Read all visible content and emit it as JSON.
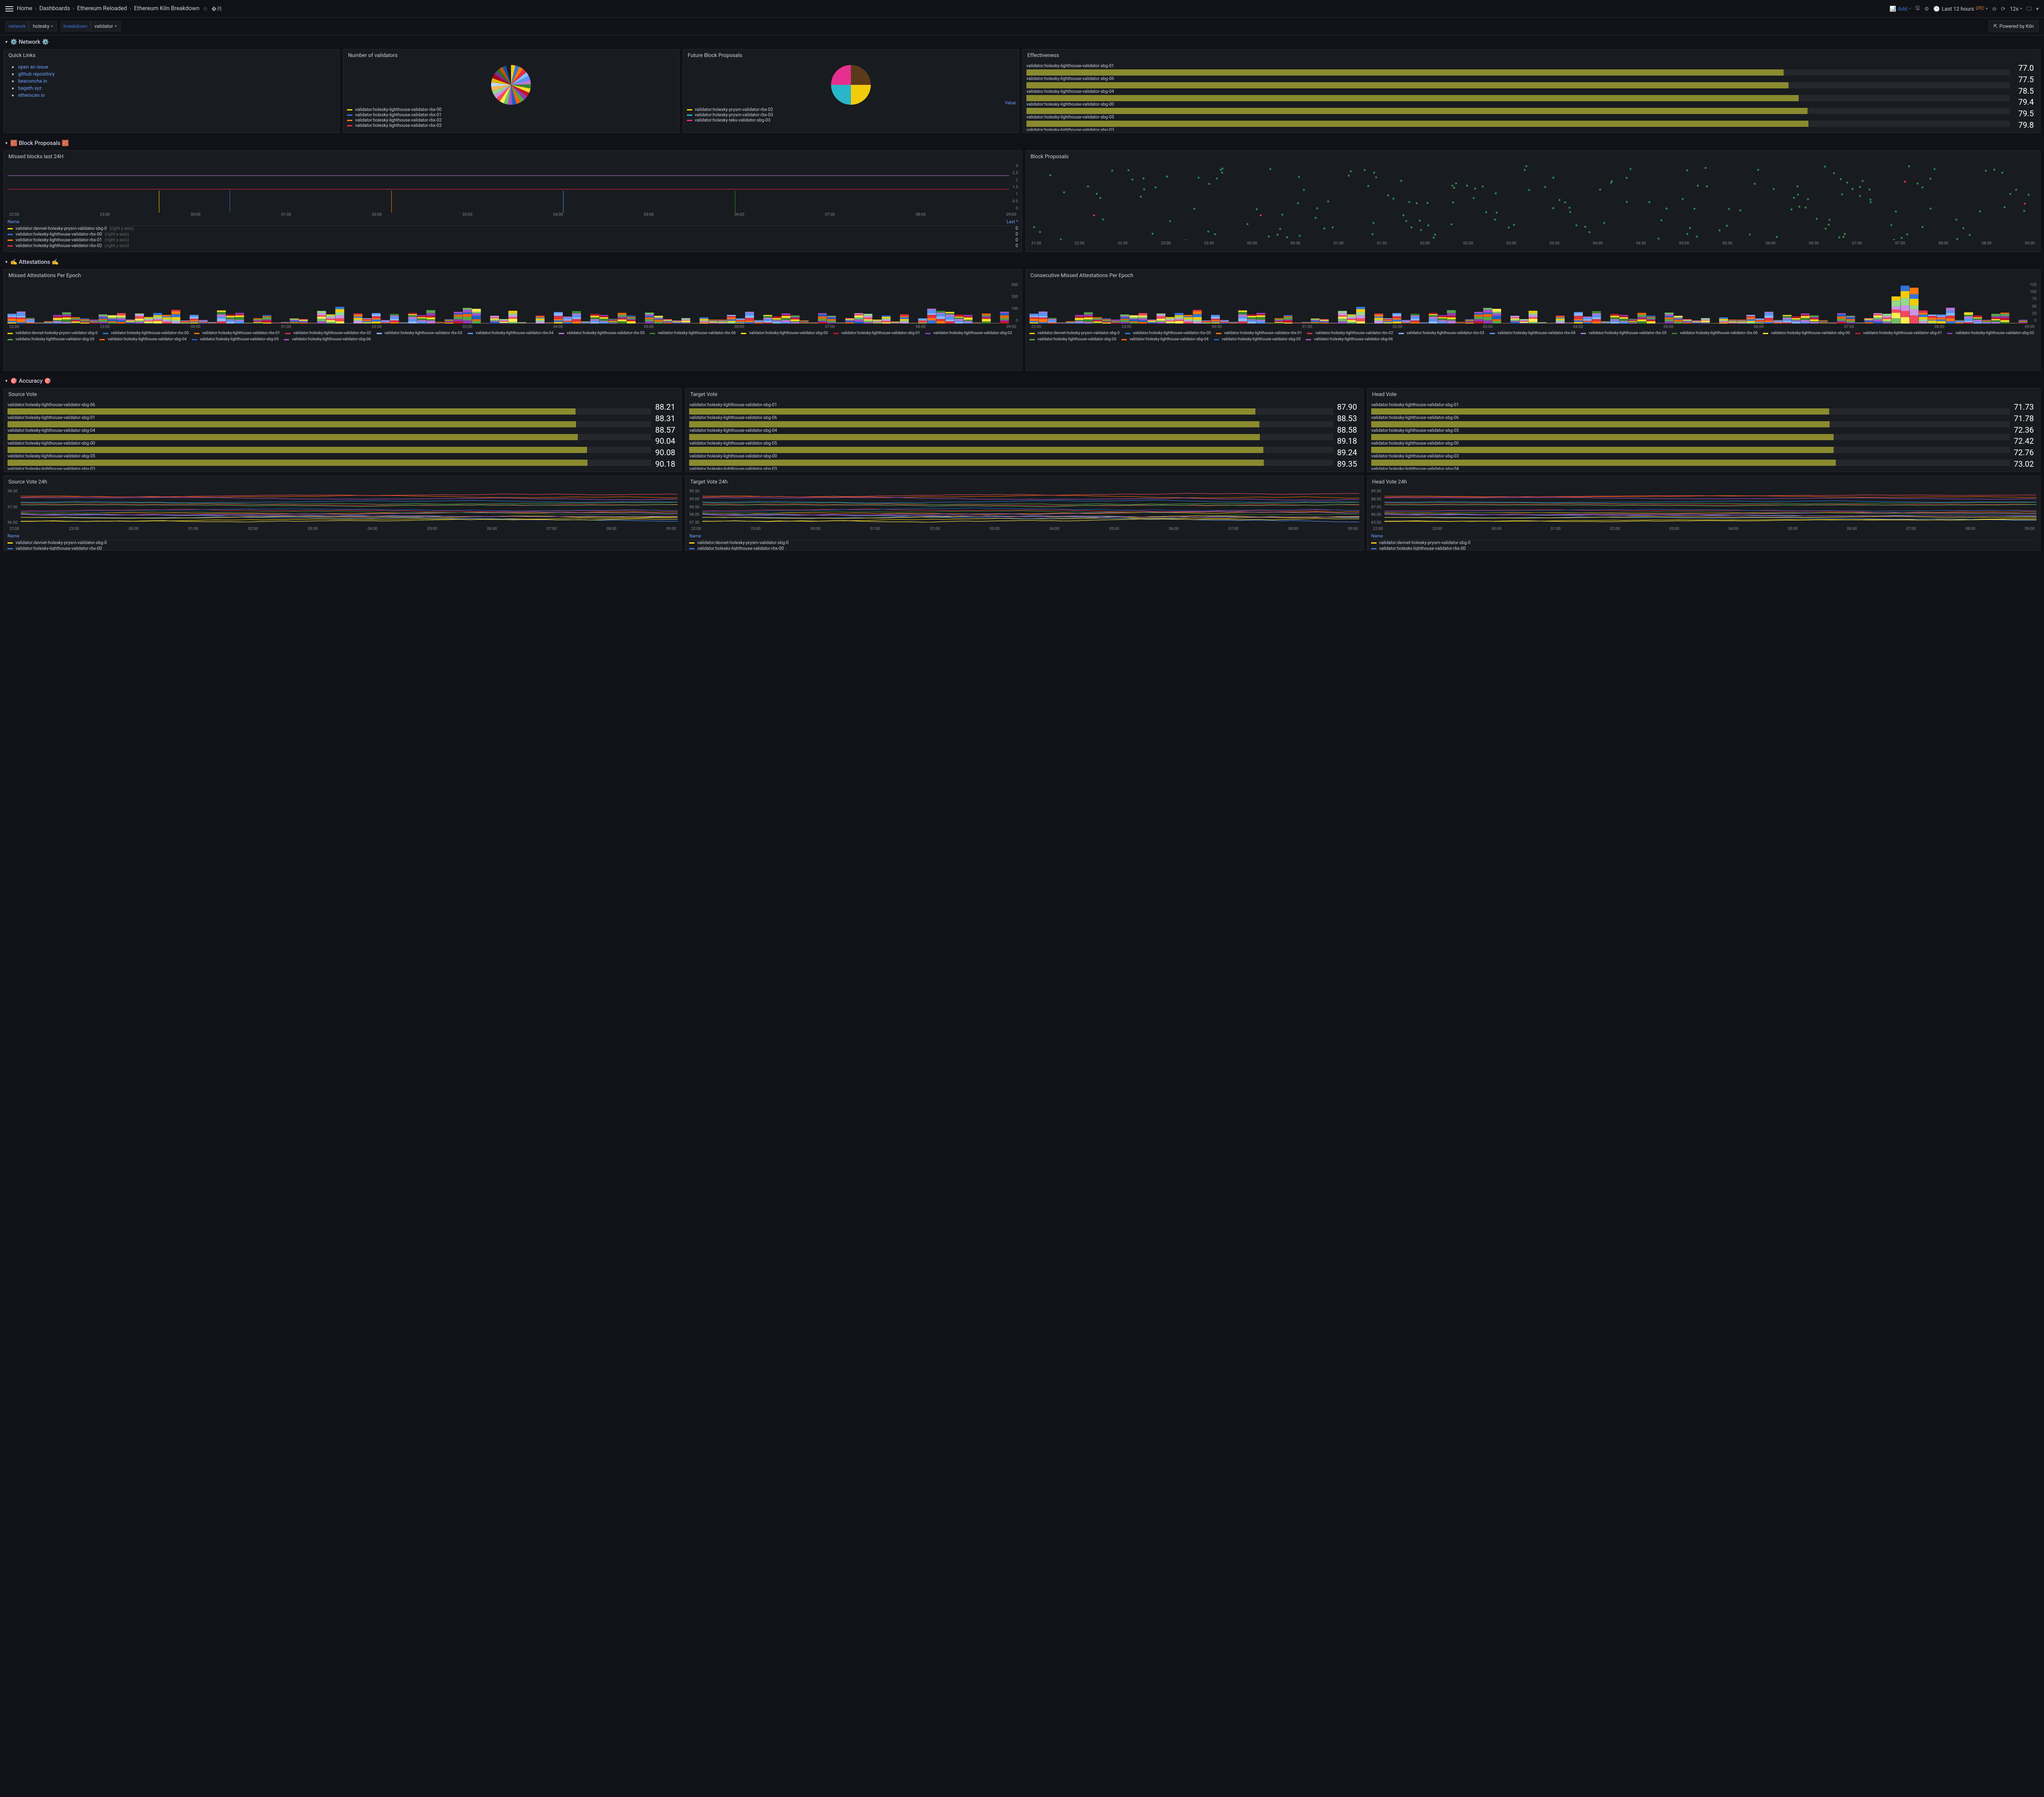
{
  "breadcrumb": {
    "home": "Home",
    "dashboards": "Dashboards",
    "folder": "Ethereum Reloaded",
    "page": "Ethereum Kiln Breakdown"
  },
  "toolbar": {
    "add": "Add",
    "timerange": "Last 12 hours",
    "tz": "UTC",
    "refresh": "12s",
    "powered": "Powered by Kiln"
  },
  "vars": {
    "network_label": "network",
    "network_value": "holesky",
    "breakdown_label": "breakdown",
    "breakdown_value": "validator"
  },
  "rows": {
    "network": "⚙️ Network ⚙️",
    "block_proposals": "🧱 Block Proposals 🧱",
    "attestations": "✍️ Attestations ✍️",
    "accuracy": "🎯 Accuracy 🎯"
  },
  "quick_links": {
    "title": "Quick Links",
    "items": [
      {
        "label": "open an issue"
      },
      {
        "label": "github repository"
      },
      {
        "label": "beaconcha.in"
      },
      {
        "label": "bageth.xyz"
      },
      {
        "label": "etherscan.io"
      }
    ]
  },
  "num_validators": {
    "title": "Number of validators",
    "slices": [
      {
        "color": "#f2cc0c",
        "pct": 3.5
      },
      {
        "color": "#3274d9",
        "pct": 3.5
      },
      {
        "color": "#ff780a",
        "pct": 3.5
      },
      {
        "color": "#e02f44",
        "pct": 3.5
      },
      {
        "color": "#8ab8ff",
        "pct": 3.5
      },
      {
        "color": "#5794f2",
        "pct": 3.5
      },
      {
        "color": "#b877d9",
        "pct": 3.5
      },
      {
        "color": "#37872d",
        "pct": 3.5
      },
      {
        "color": "#fade2a",
        "pct": 3.5
      },
      {
        "color": "#c4162a",
        "pct": 3.5
      },
      {
        "color": "#8f3bb8",
        "pct": 3.5
      },
      {
        "color": "#56a64b",
        "pct": 3.5
      },
      {
        "color": "#fa6400",
        "pct": 3.5
      },
      {
        "color": "#1f60c4",
        "pct": 3.5
      },
      {
        "color": "#a352cc",
        "pct": 3.5
      },
      {
        "color": "#73bf69",
        "pct": 3.5
      },
      {
        "color": "#ffee52",
        "pct": 3.5
      },
      {
        "color": "#f2495c",
        "pct": 3.5
      },
      {
        "color": "#ca95e5",
        "pct": 3.5
      },
      {
        "color": "#96d98d",
        "pct": 3.5
      },
      {
        "color": "#ffb357",
        "pct": 3.5
      },
      {
        "color": "#c0d8ff",
        "pct": 3.5
      },
      {
        "color": "#e0b400",
        "pct": 3.5
      },
      {
        "color": "#ad0317",
        "pct": 3.5
      },
      {
        "color": "#7c2d92",
        "pct": 3.0
      },
      {
        "color": "#2f7020",
        "pct": 3.0
      },
      {
        "color": "#cc5200",
        "pct": 3.0
      },
      {
        "color": "#1250a0",
        "pct": 3.0
      }
    ],
    "legend": [
      {
        "color": "#f2cc0c",
        "label": "validator:holesky-lighthouse-validator-rbx-00"
      },
      {
        "color": "#3274d9",
        "label": "validator:holesky-lighthouse-validator-rbx-01"
      },
      {
        "color": "#ff780a",
        "label": "validator:holesky-lighthouse-validator-rbx-02"
      },
      {
        "color": "#e02f44",
        "label": "validator:holesky-lighthouse-validator-rbx-03"
      }
    ]
  },
  "future_proposals": {
    "title": "Future Block Proposals",
    "value_label": "Value",
    "slices": [
      {
        "color": "#5b3a1a",
        "pct": 25
      },
      {
        "color": "#f2cc0c",
        "pct": 25
      },
      {
        "color": "#29b6c9",
        "pct": 25
      },
      {
        "color": "#e5308f",
        "pct": 25
      }
    ],
    "legend": [
      {
        "color": "#f2cc0c",
        "label": "validator:holesky-prysm-validator-rbx-02"
      },
      {
        "color": "#29b6c9",
        "label": "validator:holesky-prysm-validator-rbx-03"
      },
      {
        "color": "#e5308f",
        "label": "validator:holesky-teku-validator-sbg-03"
      }
    ]
  },
  "effectiveness": {
    "title": "Effectiveness",
    "items": [
      {
        "label": "validator:holesky-lighthouse-validator-sbg-01",
        "pct": 77.0,
        "value": "77.0"
      },
      {
        "label": "validator:holesky-lighthouse-validator-sbg-06",
        "pct": 77.5,
        "value": "77.5"
      },
      {
        "label": "validator:holesky-lighthouse-validator-sbg-04",
        "pct": 78.5,
        "value": "78.5"
      },
      {
        "label": "validator:holesky-lighthouse-validator-sbg-00",
        "pct": 79.4,
        "value": "79.4"
      },
      {
        "label": "validator:holesky-lighthouse-validator-sbg-05",
        "pct": 79.5,
        "value": "79.5"
      },
      {
        "label": "validator:holesky-lighthouse-validator-sbg-03",
        "pct": 79.8,
        "value": "79.8"
      }
    ],
    "bar_color": "#8a8a2f"
  },
  "missed_blocks": {
    "title": "Missed blocks last 24H",
    "x_ticks": [
      "22:00",
      "23:00",
      "00:00",
      "01:00",
      "02:00",
      "03:00",
      "04:00",
      "05:00",
      "06:00",
      "07:00",
      "08:00",
      "09:00"
    ],
    "y_ticks": [
      "3",
      "2.5",
      "2",
      "1.5",
      "1",
      "0.5",
      "0"
    ],
    "legend_header_name": "Name",
    "legend_header_last": "Last *",
    "lines": [
      {
        "color": "#b877d9",
        "y": 0.24
      },
      {
        "color": "#e02f44",
        "y": 0.52
      }
    ],
    "verticals": [
      {
        "color": "#f2cc0c",
        "x": 0.15
      },
      {
        "color": "#3274d9",
        "x": 0.22
      },
      {
        "color": "#ff780a",
        "x": 0.38
      },
      {
        "color": "#5794f2",
        "x": 0.55
      },
      {
        "color": "#37872d",
        "x": 0.72
      }
    ],
    "legend": [
      {
        "color": "#f2cc0c",
        "label": "validator:devnet-holesky-prysm-validator-sbg-0",
        "dim": "(right y-axis)",
        "value": "0"
      },
      {
        "color": "#3274d9",
        "label": "validator:holesky-lighthouse-validator-rbx-00",
        "dim": "(right y-axis)",
        "value": "0"
      },
      {
        "color": "#ff780a",
        "label": "validator:holesky-lighthouse-validator-rbx-01",
        "dim": "(right y-axis)",
        "value": "0"
      },
      {
        "color": "#e02f44",
        "label": "validator:holesky-lighthouse-validator-rbx-02",
        "dim": "(right y-axis)",
        "value": "0"
      }
    ]
  },
  "block_proposals_scatter": {
    "title": "Block Proposals",
    "x_ticks": [
      "21:30",
      "22:00",
      "22:30",
      "23:00",
      "23:30",
      "00:00",
      "00:30",
      "01:00",
      "01:30",
      "02:00",
      "02:30",
      "03:00",
      "03:30",
      "04:00",
      "04:30",
      "05:00",
      "05:30",
      "06:00",
      "06:30",
      "07:00",
      "07:30",
      "08:00",
      "08:30",
      "09:00"
    ],
    "green": "#2d8a52",
    "red": "#e02f44",
    "points": 180
  },
  "missed_att": {
    "title": "Missed Attestations Per Epoch",
    "x_ticks": [
      "22:00",
      "23:00",
      "00:00",
      "01:00",
      "02:00",
      "03:00",
      "04:00",
      "05:00",
      "06:00",
      "07:00",
      "08:00",
      "09:00"
    ],
    "y_ticks": [
      "300",
      "200",
      "100",
      "0"
    ],
    "legend": [
      {
        "color": "#f2cc0c",
        "label": "validator:devnet-holesky-prysm-validator-sbg-0"
      },
      {
        "color": "#3274d9",
        "label": "validator:holesky-lighthouse-validator-rbx-00"
      },
      {
        "color": "#ff780a",
        "label": "validator:holesky-lighthouse-validator-rbx-01"
      },
      {
        "color": "#e02f44",
        "label": "validator:holesky-lighthouse-validator-rbx-02"
      },
      {
        "color": "#8ab8ff",
        "label": "validator:holesky-lighthouse-validator-rbx-03"
      },
      {
        "color": "#5794f2",
        "label": "validator:holesky-lighthouse-validator-rbx-04"
      },
      {
        "color": "#b877d9",
        "label": "validator:holesky-lighthouse-validator-rbx-05"
      },
      {
        "color": "#37872d",
        "label": "validator:holesky-lighthouse-validator-rbx-06"
      },
      {
        "color": "#fade2a",
        "label": "validator:holesky-lighthouse-validator-sbg-00"
      },
      {
        "color": "#c4162a",
        "label": "validator:holesky-lighthouse-validator-sbg-01"
      },
      {
        "color": "#8f3bb8",
        "label": "validator:holesky-lighthouse-validator-sbg-02"
      },
      {
        "color": "#56a64b",
        "label": "validator:holesky-lighthouse-validator-sbg-03"
      },
      {
        "color": "#fa6400",
        "label": "validator:holesky-lighthouse-validator-sbg-04"
      },
      {
        "color": "#1f60c4",
        "label": "validator:holesky-lighthouse-validator-sbg-05"
      },
      {
        "color": "#a352cc",
        "label": "validator:holesky-lighthouse-validator-sbg-06"
      }
    ]
  },
  "consec_missed_att": {
    "title": "Consecutive Missed Attestations Per Epoch",
    "x_ticks": [
      "22:00",
      "23:00",
      "00:00",
      "01:00",
      "02:00",
      "03:00",
      "04:00",
      "05:00",
      "06:00",
      "07:00",
      "08:00",
      "09:00"
    ],
    "y_ticks": [
      "125",
      "100",
      "75",
      "50",
      "25",
      "0"
    ],
    "legend": [
      {
        "color": "#f2cc0c",
        "label": "validator:devnet-holesky-prysm-validator-sbg-0"
      },
      {
        "color": "#3274d9",
        "label": "validator:holesky-lighthouse-validator-rbx-00"
      },
      {
        "color": "#ff780a",
        "label": "validator:holesky-lighthouse-validator-rbx-01"
      },
      {
        "color": "#e02f44",
        "label": "validator:holesky-lighthouse-validator-rbx-02"
      },
      {
        "color": "#8ab8ff",
        "label": "validator:holesky-lighthouse-validator-rbx-03"
      },
      {
        "color": "#5794f2",
        "label": "validator:holesky-lighthouse-validator-rbx-04"
      },
      {
        "color": "#b877d9",
        "label": "validator:holesky-lighthouse-validator-rbx-05"
      },
      {
        "color": "#37872d",
        "label": "validator:holesky-lighthouse-validator-rbx-06"
      },
      {
        "color": "#fade2a",
        "label": "validator:holesky-lighthouse-validator-sbg-00"
      },
      {
        "color": "#c4162a",
        "label": "validator:holesky-lighthouse-validator-sbg-01"
      },
      {
        "color": "#8f3bb8",
        "label": "validator:holesky-lighthouse-validator-sbg-02"
      },
      {
        "color": "#56a64b",
        "label": "validator:holesky-lighthouse-validator-sbg-03"
      },
      {
        "color": "#fa6400",
        "label": "validator:holesky-lighthouse-validator-sbg-04"
      },
      {
        "color": "#1f60c4",
        "label": "validator:holesky-lighthouse-validator-sbg-05"
      },
      {
        "color": "#a352cc",
        "label": "validator:holesky-lighthouse-validator-sbg-06"
      }
    ]
  },
  "source_vote": {
    "title": "Source Vote",
    "items": [
      {
        "label": "validator:holesky-lighthouse-validator-sbg-06",
        "pct": 88.21,
        "value": "88.21"
      },
      {
        "label": "validator:holesky-lighthouse-validator-sbg-01",
        "pct": 88.31,
        "value": "88.31"
      },
      {
        "label": "validator:holesky-lighthouse-validator-sbg-04",
        "pct": 88.57,
        "value": "88.57"
      },
      {
        "label": "validator:holesky-lighthouse-validator-sbg-00",
        "pct": 90.04,
        "value": "90.04"
      },
      {
        "label": "validator:holesky-lighthouse-validator-sbg-05",
        "pct": 90.08,
        "value": "90.08"
      },
      {
        "label": "validator:holesky-lighthouse-validator-sbg-03",
        "pct": 90.18,
        "value": "90.18"
      }
    ]
  },
  "target_vote": {
    "title": "Target Vote",
    "items": [
      {
        "label": "validator:holesky-lighthouse-validator-sbg-01",
        "pct": 87.9,
        "value": "87.90"
      },
      {
        "label": "validator:holesky-lighthouse-validator-sbg-06",
        "pct": 88.53,
        "value": "88.53"
      },
      {
        "label": "validator:holesky-lighthouse-validator-sbg-04",
        "pct": 88.58,
        "value": "88.58"
      },
      {
        "label": "validator:holesky-lighthouse-validator-sbg-05",
        "pct": 89.18,
        "value": "89.18"
      },
      {
        "label": "validator:holesky-lighthouse-validator-sbg-00",
        "pct": 89.24,
        "value": "89.24"
      },
      {
        "label": "validator:holesky-lighthouse-validator-sbg-03",
        "pct": 89.35,
        "value": "89.35"
      }
    ]
  },
  "head_vote": {
    "title": "Head Vote",
    "items": [
      {
        "label": "validator:holesky-lighthouse-validator-sbg-01",
        "pct": 71.73,
        "value": "71.73"
      },
      {
        "label": "validator:holesky-lighthouse-validator-sbg-06",
        "pct": 71.78,
        "value": "71.78"
      },
      {
        "label": "validator:holesky-lighthouse-validator-sbg-05",
        "pct": 72.36,
        "value": "72.36"
      },
      {
        "label": "validator:holesky-lighthouse-validator-sbg-00",
        "pct": 72.42,
        "value": "72.42"
      },
      {
        "label": "validator:holesky-lighthouse-validator-sbg-03",
        "pct": 72.76,
        "value": "72.76"
      },
      {
        "label": "validator:holesky-lighthouse-validator-sbg-04",
        "pct": 73.02,
        "value": "73.02"
      }
    ]
  },
  "source_vote_24h": {
    "title": "Source Vote 24h",
    "x_ticks": [
      "22:00",
      "23:00",
      "00:00",
      "01:00",
      "02:00",
      "03:00",
      "04:00",
      "05:00",
      "06:00",
      "07:00",
      "08:00",
      "09:00"
    ],
    "y_ticks": [
      "98.00",
      "97.00",
      "96.00"
    ],
    "legend_header_name": "Name",
    "legend": [
      {
        "color": "#f2cc0c",
        "label": "validator:devnet-holesky-prysm-validator-sbg-0"
      },
      {
        "color": "#3274d9",
        "label": "validator:holesky-lighthouse-validator-rbx-00"
      }
    ]
  },
  "target_vote_24h": {
    "title": "Target Vote 24h",
    "x_ticks": [
      "22:00",
      "23:00",
      "00:00",
      "01:00",
      "02:00",
      "03:00",
      "04:00",
      "05:00",
      "06:00",
      "07:00",
      "08:00",
      "09:00"
    ],
    "y_ticks": [
      "99.50",
      "99.00",
      "98.50",
      "98.00",
      "97.50"
    ],
    "legend_header_name": "Name",
    "legend": [
      {
        "color": "#f2cc0c",
        "label": "validator:devnet-holesky-prysm-validator-sbg-0"
      },
      {
        "color": "#3274d9",
        "label": "validator:holesky-lighthouse-validator-rbx-00"
      }
    ]
  },
  "head_vote_24h": {
    "title": "Head Vote 24h",
    "x_ticks": [
      "22:00",
      "23:00",
      "00:00",
      "01:00",
      "02:00",
      "03:00",
      "04:00",
      "05:00",
      "06:00",
      "07:00",
      "08:00",
      "09:00"
    ],
    "y_ticks": [
      "89.00",
      "88.00",
      "87.00",
      "86.00",
      "85.00"
    ],
    "legend_header_name": "Name",
    "legend": [
      {
        "color": "#f2cc0c",
        "label": "validator:devnet-holesky-prysm-validator-sbg-0"
      },
      {
        "color": "#3274d9",
        "label": "validator:holesky-lighthouse-validator-rbx-00"
      }
    ]
  },
  "colors": {
    "bar_fill": "#8a8a2f",
    "line_palette": [
      "#f2cc0c",
      "#3274d9",
      "#ff780a",
      "#e02f44",
      "#8ab8ff",
      "#5794f2",
      "#b877d9",
      "#37872d",
      "#fade2a",
      "#c4162a",
      "#8f3bb8",
      "#56a64b",
      "#fa6400",
      "#1f60c4",
      "#a352cc",
      "#73bf69",
      "#ffee52",
      "#f2495c",
      "#ca95e5",
      "#96d98d"
    ]
  }
}
